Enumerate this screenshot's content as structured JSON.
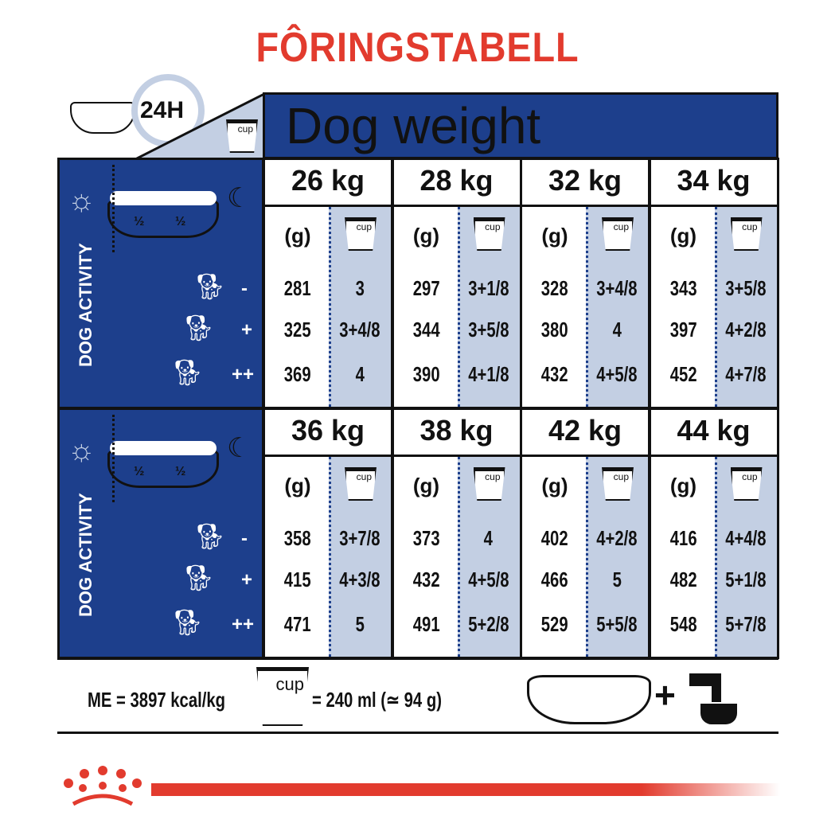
{
  "title": "FÔRINGSTABELL",
  "header": {
    "duration": "24H",
    "weight_title": "Dog weight",
    "cup_label": "cup"
  },
  "left_panel": {
    "activity_label": "DOG ACTIVITY",
    "half_left": "½",
    "half_right": "½",
    "levels": [
      "-",
      "+",
      "++"
    ]
  },
  "columns": {
    "grams": "(g)",
    "cup": "cup"
  },
  "blocks": [
    {
      "weights": [
        {
          "weight": "26 kg",
          "grams": [
            "281",
            "325",
            "369"
          ],
          "cups": [
            "3",
            "3+4/8",
            "4"
          ]
        },
        {
          "weight": "28 kg",
          "grams": [
            "297",
            "344",
            "390"
          ],
          "cups": [
            "3+1/8",
            "3+5/8",
            "4+1/8"
          ]
        },
        {
          "weight": "32 kg",
          "grams": [
            "328",
            "380",
            "432"
          ],
          "cups": [
            "3+4/8",
            "4",
            "4+5/8"
          ]
        },
        {
          "weight": "34 kg",
          "grams": [
            "343",
            "397",
            "452"
          ],
          "cups": [
            "3+5/8",
            "4+2/8",
            "4+7/8"
          ]
        }
      ]
    },
    {
      "weights": [
        {
          "weight": "36 kg",
          "grams": [
            "358",
            "415",
            "471"
          ],
          "cups": [
            "3+7/8",
            "4+3/8",
            "5"
          ]
        },
        {
          "weight": "38 kg",
          "grams": [
            "373",
            "432",
            "491"
          ],
          "cups": [
            "4",
            "4+5/8",
            "5+2/8"
          ]
        },
        {
          "weight": "42 kg",
          "grams": [
            "402",
            "466",
            "529"
          ],
          "cups": [
            "4+2/8",
            "5",
            "5+5/8"
          ]
        },
        {
          "weight": "44 kg",
          "grams": [
            "416",
            "482",
            "548"
          ],
          "cups": [
            "4+4/8",
            "5+1/8",
            "5+7/8"
          ]
        }
      ]
    }
  ],
  "footer": {
    "energy": "ME = 3897 kcal/kg",
    "cup_label": "cup",
    "cup_equiv": "= 240 ml (≃ 94 g)",
    "plus": "+"
  },
  "colors": {
    "brand_red": "#e23b2e",
    "blue": "#1d3f8c",
    "light_blue": "#c3cfe3"
  }
}
